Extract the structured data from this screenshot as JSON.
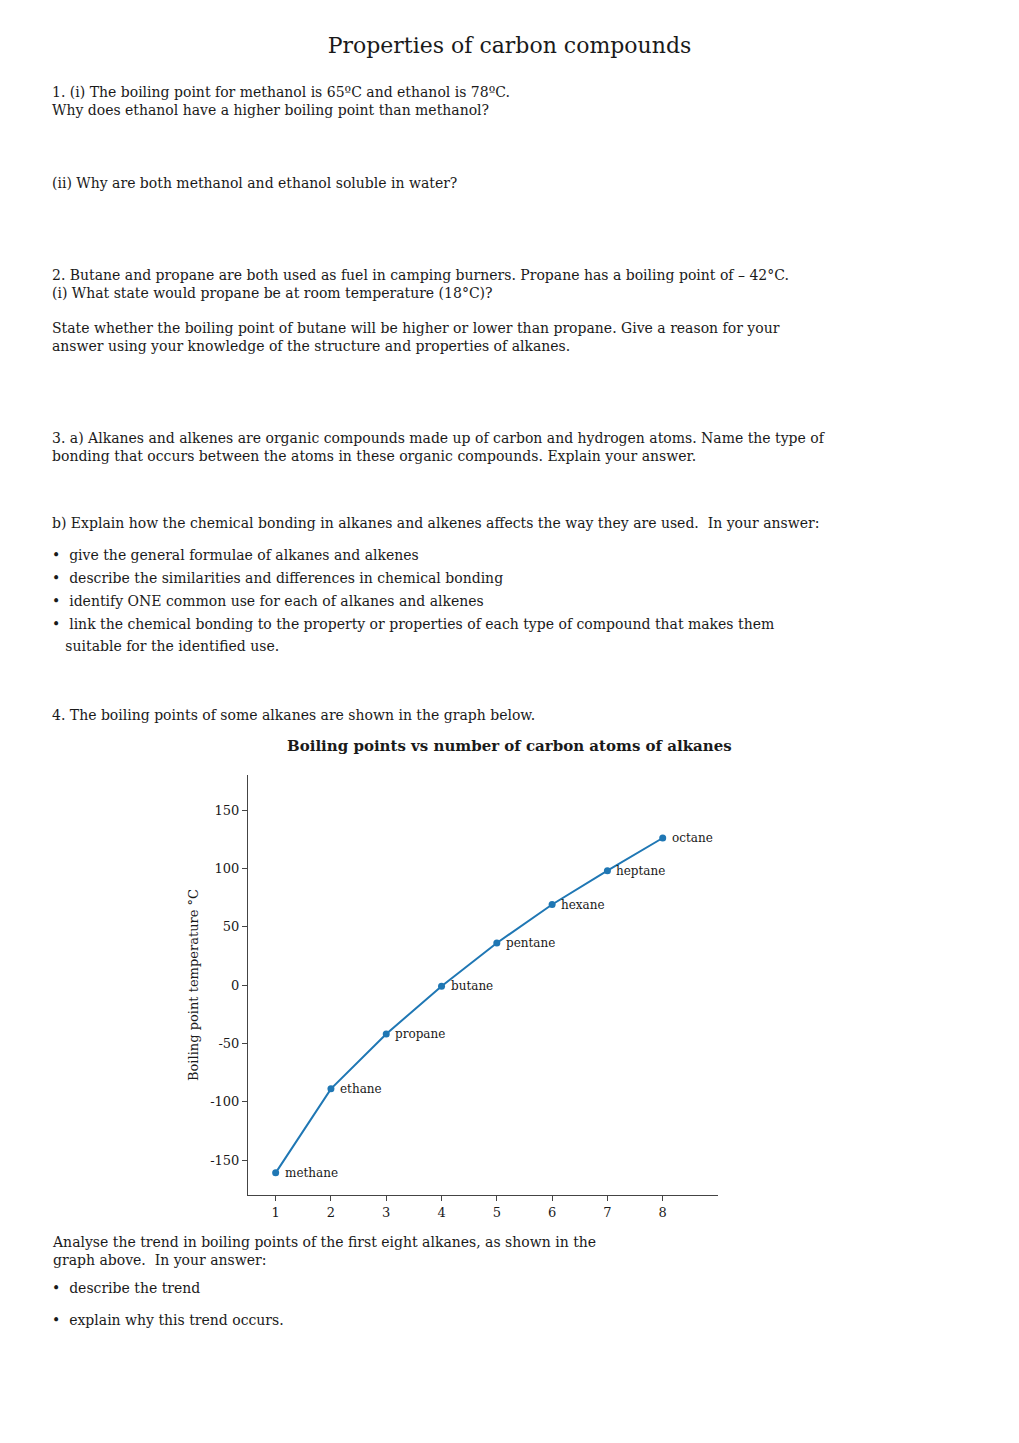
{
  "chart_data": {
    "type": "line",
    "title": "Properties of carbon compounds",
    "subtitle": "Boiling points vs number of carbon atoms of alkanes",
    "ylabel": "Boiling point temperature °C",
    "x": [
      1,
      2,
      3,
      4,
      5,
      6,
      7,
      8
    ],
    "values": [
      -161,
      -89,
      -42,
      -1,
      36,
      69,
      98,
      126
    ],
    "xlim": [
      0.5,
      9.0
    ],
    "ylim": [
      -180,
      180
    ],
    "xticks": [
      1,
      2,
      3,
      4,
      5,
      6,
      7,
      8
    ],
    "yticks": [
      -150,
      -100,
      -50,
      0,
      50,
      100,
      150
    ],
    "marker": "circle",
    "grid": false,
    "annotations": [
      "1. (i) The boiling point for methanol is 65ºC and ethanol is 78ºC.\nWhy does ethanol have a higher boiling point than methanol?",
      "(ii) Why are both methanol and ethanol soluble in water?",
      "2. Butane and propane are both used as fuel in camping burners. Propane has a boiling point of – 42°C.\n(i) What state would propane be at room temperature (18°C)?",
      "State whether the boiling point of butane will be higher or lower than propane. Give a reason for your\nanswer using your knowledge of the structure and properties of alkanes.",
      "3. a) Alkanes and alkenes are organic compounds made up of carbon and hydrogen atoms. Name the type of\nbonding that occurs between the atoms in these organic compounds. Explain your answer.",
      "b) Explain how the chemical bonding in alkanes and alkenes affects the way they are used.  In your answer:",
      "•  give the general formulae of alkanes and alkenes",
      "•  describe the similarities and differences in chemical bonding",
      "•  identify ONE common use for each of alkanes and alkenes",
      "•  link the chemical bonding to the property or properties of each type of compound that makes them",
      "   suitable for the identified use.",
      "4. The boiling points of some alkanes are shown in the graph below.",
      "Analyse the trend in boiling points of the first eight alkanes, as shown in the\ngraph above.  In your answer:",
      "•  describe the trend",
      "•  explain why this trend occurs.",
      {
        "x": 1,
        "y": -161,
        "text": "methane"
      },
      {
        "x": 2,
        "y": -89,
        "text": "ethane"
      },
      {
        "x": 3,
        "y": -42,
        "text": "propane"
      },
      {
        "x": 4,
        "y": -1,
        "text": "butane"
      },
      {
        "x": 5,
        "y": 36,
        "text": "pentane"
      },
      {
        "x": 6,
        "y": 69,
        "text": "hexane"
      },
      {
        "x": 7,
        "y": 98,
        "text": "heptane"
      },
      {
        "x": 8,
        "y": 126,
        "text": "octane"
      }
    ]
  }
}
